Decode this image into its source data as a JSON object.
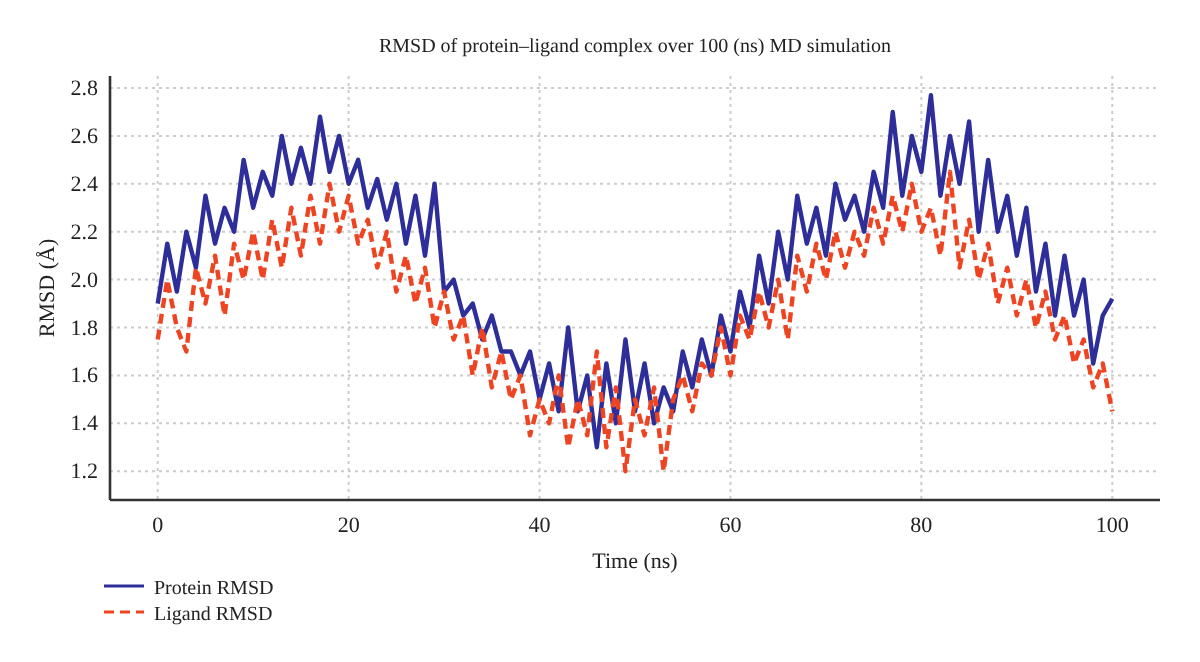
{
  "chart_data": {
    "type": "line",
    "title": "RMSD of protein–ligand complex over 100 (ns) MD simulation",
    "xlabel": "Time (ns)",
    "ylabel": "RMSD (Å)",
    "xlim": [
      -5,
      105
    ],
    "ylim": [
      1.08,
      2.85
    ],
    "xticks": [
      0,
      20,
      40,
      60,
      80,
      100
    ],
    "yticks": [
      {
        "value": 1.2,
        "label": "1.2"
      },
      {
        "value": 1.4,
        "label": "1.4"
      },
      {
        "value": 1.6,
        "label": "1.6"
      },
      {
        "value": 1.8,
        "label": "1.8"
      },
      {
        "value": 2.0,
        "label": "2.0"
      },
      {
        "value": 2.2,
        "label": "2.2"
      },
      {
        "value": 2.4,
        "label": "2.4"
      },
      {
        "value": 2.6,
        "label": "2.6"
      },
      {
        "value": 2.8,
        "label": "2.8"
      }
    ],
    "grid": true,
    "legend": "bottom left",
    "marker": "none",
    "x": [
      0,
      1,
      2,
      3,
      4,
      5,
      6,
      7,
      8,
      9,
      10,
      11,
      12,
      13,
      14,
      15,
      16,
      17,
      18,
      19,
      20,
      21,
      22,
      23,
      24,
      25,
      26,
      27,
      28,
      29,
      30,
      31,
      32,
      33,
      34,
      35,
      36,
      37,
      38,
      39,
      40,
      41,
      42,
      43,
      44,
      45,
      46,
      47,
      48,
      49,
      50,
      51,
      52,
      53,
      54,
      55,
      56,
      57,
      58,
      59,
      60,
      61,
      62,
      63,
      64,
      65,
      66,
      67,
      68,
      69,
      70,
      71,
      72,
      73,
      74,
      75,
      76,
      77,
      78,
      79,
      80,
      81,
      82,
      83,
      84,
      85,
      86,
      87,
      88,
      89,
      90,
      91,
      92,
      93,
      94,
      95,
      96,
      97,
      98,
      99,
      100
    ],
    "series": [
      {
        "name": "Protein RMSD",
        "color": "#2e2e9a",
        "line_style": "solid",
        "values": [
          1.9,
          2.15,
          1.95,
          2.2,
          2.05,
          2.35,
          2.15,
          2.3,
          2.2,
          2.5,
          2.3,
          2.45,
          2.35,
          2.6,
          2.4,
          2.55,
          2.4,
          2.68,
          2.45,
          2.6,
          2.4,
          2.5,
          2.3,
          2.42,
          2.25,
          2.4,
          2.15,
          2.35,
          2.1,
          2.4,
          1.95,
          2.0,
          1.85,
          1.9,
          1.75,
          1.85,
          1.7,
          1.7,
          1.6,
          1.7,
          1.5,
          1.65,
          1.45,
          1.8,
          1.45,
          1.6,
          1.3,
          1.65,
          1.4,
          1.75,
          1.45,
          1.65,
          1.4,
          1.55,
          1.45,
          1.7,
          1.55,
          1.75,
          1.6,
          1.85,
          1.7,
          1.95,
          1.8,
          2.1,
          1.9,
          2.2,
          2.0,
          2.35,
          2.15,
          2.3,
          2.1,
          2.4,
          2.25,
          2.35,
          2.2,
          2.45,
          2.3,
          2.7,
          2.35,
          2.6,
          2.45,
          2.77,
          2.35,
          2.6,
          2.4,
          2.66,
          2.2,
          2.5,
          2.2,
          2.35,
          2.1,
          2.3,
          1.95,
          2.15,
          1.85,
          2.1,
          1.85,
          2.0,
          1.65,
          1.85,
          1.92
        ]
      },
      {
        "name": "Ligand RMSD",
        "color": "#ee4422",
        "line_style": "dashed",
        "values": [
          1.75,
          2.0,
          1.8,
          1.7,
          2.05,
          1.9,
          2.1,
          1.85,
          2.15,
          2.0,
          2.2,
          2.0,
          2.25,
          2.05,
          2.3,
          2.1,
          2.35,
          2.15,
          2.4,
          2.2,
          2.35,
          2.15,
          2.25,
          2.05,
          2.2,
          1.95,
          2.1,
          1.9,
          2.05,
          1.8,
          1.95,
          1.75,
          1.85,
          1.6,
          1.8,
          1.55,
          1.7,
          1.5,
          1.6,
          1.35,
          1.5,
          1.4,
          1.6,
          1.3,
          1.5,
          1.35,
          1.7,
          1.3,
          1.55,
          1.2,
          1.5,
          1.35,
          1.55,
          1.2,
          1.5,
          1.6,
          1.45,
          1.65,
          1.6,
          1.8,
          1.6,
          1.85,
          1.75,
          1.95,
          1.8,
          2.0,
          1.75,
          2.1,
          1.95,
          2.15,
          2.0,
          2.2,
          2.05,
          2.2,
          2.1,
          2.3,
          2.15,
          2.35,
          2.2,
          2.4,
          2.2,
          2.3,
          2.1,
          2.45,
          2.05,
          2.25,
          2.0,
          2.15,
          1.9,
          2.05,
          1.85,
          2.0,
          1.8,
          1.95,
          1.75,
          1.85,
          1.65,
          1.75,
          1.55,
          1.65,
          1.45
        ]
      }
    ]
  }
}
